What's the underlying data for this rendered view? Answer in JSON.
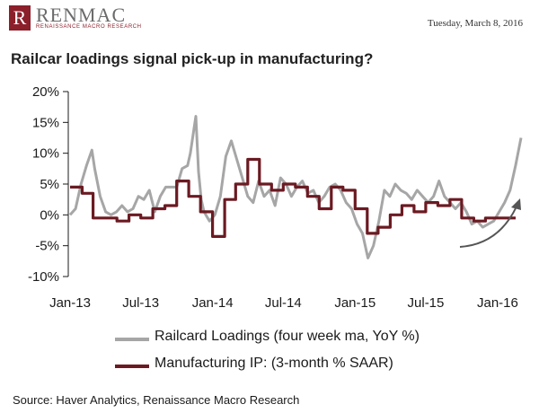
{
  "header": {
    "logo_mark": "R",
    "logo_name": "RENMAC",
    "logo_tagline": "RENAISSANCE MACRO RESEARCH",
    "date": "Tuesday, March 8, 2016"
  },
  "title": "Railcar loadings signal pick-up in manufacturing?",
  "source": "Source: Haver Analytics, Renaissance Macro Research",
  "colors": {
    "railcar": "#a6a6a6",
    "manufacturing": "#6b1a22",
    "arrow": "#555555"
  },
  "chart_data": {
    "type": "line",
    "title": "Railcar loadings signal pick-up in manufacturing?",
    "xlabel": "",
    "ylabel": "",
    "x_range": [
      "2013-01",
      "2016-03"
    ],
    "x_ticks": [
      "Jan-13",
      "Jul-13",
      "Jan-14",
      "Jul-14",
      "Jan-15",
      "Jul-15",
      "Jan-16"
    ],
    "ylim": [
      -10,
      20
    ],
    "y_ticks": [
      -10,
      -5,
      0,
      5,
      10,
      15,
      20
    ],
    "y_tick_labels": [
      "-10%",
      "-5%",
      "0%",
      "5%",
      "10%",
      "15%",
      "20%"
    ],
    "grid": false,
    "legend_placement": "bottom",
    "series": [
      {
        "name": "Railcard Loadings (four week ma, YoY %)",
        "x": [
          "2013-01-01",
          "2013-01-15",
          "2013-01-29",
          "2013-02-12",
          "2013-02-26",
          "2013-03-05",
          "2013-03-19",
          "2013-04-02",
          "2013-04-16",
          "2013-04-30",
          "2013-05-14",
          "2013-05-28",
          "2013-06-11",
          "2013-06-25",
          "2013-07-09",
          "2013-07-23",
          "2013-08-06",
          "2013-08-20",
          "2013-09-03",
          "2013-09-17",
          "2013-10-01",
          "2013-10-15",
          "2013-10-29",
          "2013-11-05",
          "2013-11-19",
          "2013-11-26",
          "2013-12-03",
          "2013-12-10",
          "2013-12-24",
          "2014-01-07",
          "2014-01-21",
          "2014-02-04",
          "2014-02-18",
          "2014-03-04",
          "2014-03-18",
          "2014-04-01",
          "2014-04-15",
          "2014-04-29",
          "2014-05-13",
          "2014-05-27",
          "2014-06-10",
          "2014-06-24",
          "2014-07-08",
          "2014-07-22",
          "2014-08-05",
          "2014-08-19",
          "2014-09-02",
          "2014-09-16",
          "2014-09-30",
          "2014-10-14",
          "2014-10-28",
          "2014-11-11",
          "2014-11-25",
          "2014-12-09",
          "2014-12-23",
          "2015-01-06",
          "2015-01-20",
          "2015-02-03",
          "2015-02-17",
          "2015-03-03",
          "2015-03-17",
          "2015-03-31",
          "2015-04-14",
          "2015-04-28",
          "2015-05-12",
          "2015-05-26",
          "2015-06-09",
          "2015-06-23",
          "2015-07-07",
          "2015-07-21",
          "2015-08-04",
          "2015-08-18",
          "2015-09-01",
          "2015-09-15",
          "2015-09-29",
          "2015-10-13",
          "2015-10-27",
          "2015-11-10",
          "2015-11-24",
          "2015-12-08",
          "2015-12-22",
          "2016-01-05",
          "2016-01-19",
          "2016-02-02",
          "2016-02-16",
          "2016-03-01"
        ],
        "values": [
          0,
          1,
          5,
          8,
          10.5,
          7.5,
          3,
          0.5,
          0,
          0.5,
          1.5,
          0.5,
          1,
          3,
          2.5,
          4,
          0.5,
          3,
          4.5,
          4.5,
          4.5,
          7.5,
          8,
          10,
          16,
          7,
          2.5,
          0.5,
          -1,
          0,
          3,
          9.5,
          12,
          9,
          6,
          3,
          2,
          5.5,
          3,
          4,
          1.5,
          6,
          5,
          3,
          4.5,
          5.5,
          3.5,
          4,
          2,
          3,
          4.5,
          5,
          4,
          2,
          1,
          -1.5,
          -3,
          -7,
          -5,
          -1,
          4,
          3,
          5,
          4,
          3.5,
          2.5,
          4,
          3,
          2,
          3,
          5.5,
          3,
          2,
          1,
          2,
          0.5,
          -1.5,
          -1,
          -2,
          -1.5,
          -1,
          0.5,
          2,
          4,
          8,
          12.5
        ]
      },
      {
        "name": "Manufacturing IP: (3-month % SAAR)",
        "x": [
          "2013-01-01",
          "2013-02-01",
          "2013-03-01",
          "2013-04-01",
          "2013-05-01",
          "2013-06-01",
          "2013-07-01",
          "2013-08-01",
          "2013-09-01",
          "2013-10-01",
          "2013-11-01",
          "2013-12-01",
          "2014-01-01",
          "2014-02-01",
          "2014-03-01",
          "2014-04-01",
          "2014-05-01",
          "2014-06-01",
          "2014-07-01",
          "2014-08-01",
          "2014-09-01",
          "2014-10-01",
          "2014-11-01",
          "2014-12-01",
          "2015-01-01",
          "2015-02-01",
          "2015-03-01",
          "2015-04-01",
          "2015-05-01",
          "2015-06-01",
          "2015-07-01",
          "2015-08-01",
          "2015-09-01",
          "2015-10-01",
          "2015-11-01",
          "2015-12-01",
          "2016-01-01"
        ],
        "values": [
          4.5,
          3.5,
          -0.5,
          -0.5,
          -1,
          0,
          -0.5,
          1,
          1.5,
          5.5,
          3,
          0.5,
          -3.5,
          2.5,
          5,
          9,
          5,
          4,
          5,
          4.5,
          3,
          1,
          4.5,
          4,
          1,
          -3,
          -2,
          0,
          1.5,
          0.5,
          2,
          1.5,
          2.5,
          -0.5,
          -1,
          -0.5,
          -0.5
        ]
      }
    ]
  }
}
